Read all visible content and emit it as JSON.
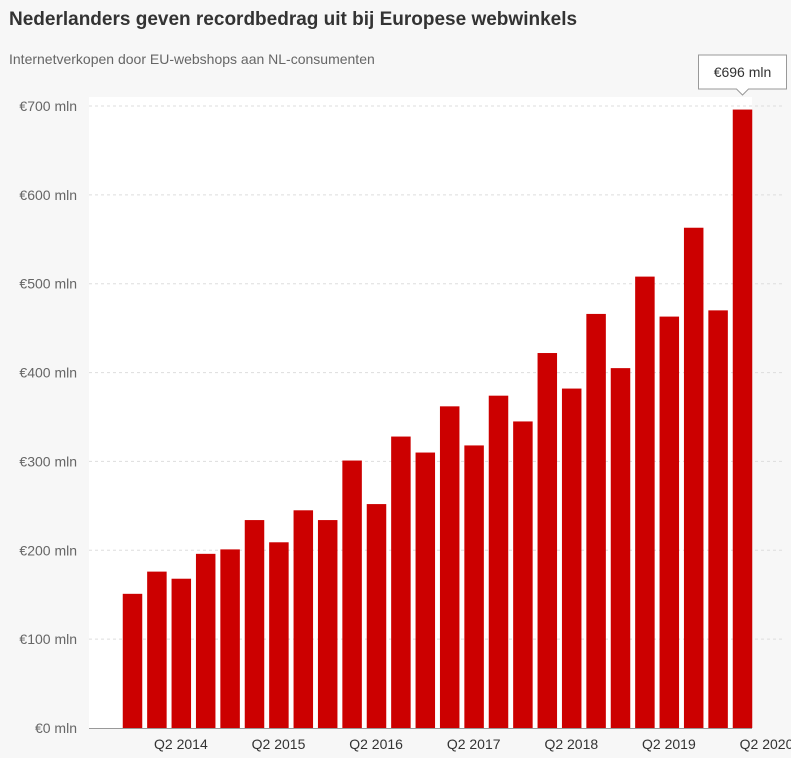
{
  "chart_data": {
    "type": "bar",
    "title": "Nederlanders geven recordbedrag uit bij Europese webwinkels",
    "subtitle": "Internetverkopen door EU-webshops aan NL-consumenten",
    "xlabel": "",
    "ylabel": "",
    "ylim": [
      0,
      700
    ],
    "yticks": [
      0,
      100,
      200,
      300,
      400,
      500,
      600,
      700
    ],
    "ytick_labels": [
      "€0 mln",
      "€100 mln",
      "€200 mln",
      "€300 mln",
      "€400 mln",
      "€500 mln",
      "€600 mln",
      "€700 mln"
    ],
    "categories": [
      "Q1 2014",
      "Q2 2014",
      "Q3 2014",
      "Q4 2014",
      "Q1 2015",
      "Q2 2015",
      "Q3 2015",
      "Q4 2015",
      "Q1 2016",
      "Q2 2016",
      "Q3 2016",
      "Q4 2016",
      "Q1 2017",
      "Q2 2017",
      "Q3 2017",
      "Q4 2017",
      "Q1 2018",
      "Q2 2018",
      "Q3 2018",
      "Q4 2018",
      "Q1 2019",
      "Q2 2019",
      "Q3 2019",
      "Q4 2019",
      "Q1 2020",
      "Q2 2020"
    ],
    "visible_xtick_labels": [
      "Q2 2014",
      "Q2 2015",
      "Q2 2016",
      "Q2 2017",
      "Q2 2018",
      "Q2 2019",
      "Q2 2020"
    ],
    "values": [
      151,
      176,
      168,
      196,
      201,
      234,
      209,
      245,
      234,
      301,
      252,
      328,
      310,
      362,
      318,
      374,
      345,
      422,
      382,
      466,
      405,
      508,
      463,
      563,
      470,
      696
    ],
    "series_color": "#cc0000",
    "grid": true,
    "tooltip": {
      "category": "Q2 2020",
      "label": "€696 mln"
    }
  }
}
